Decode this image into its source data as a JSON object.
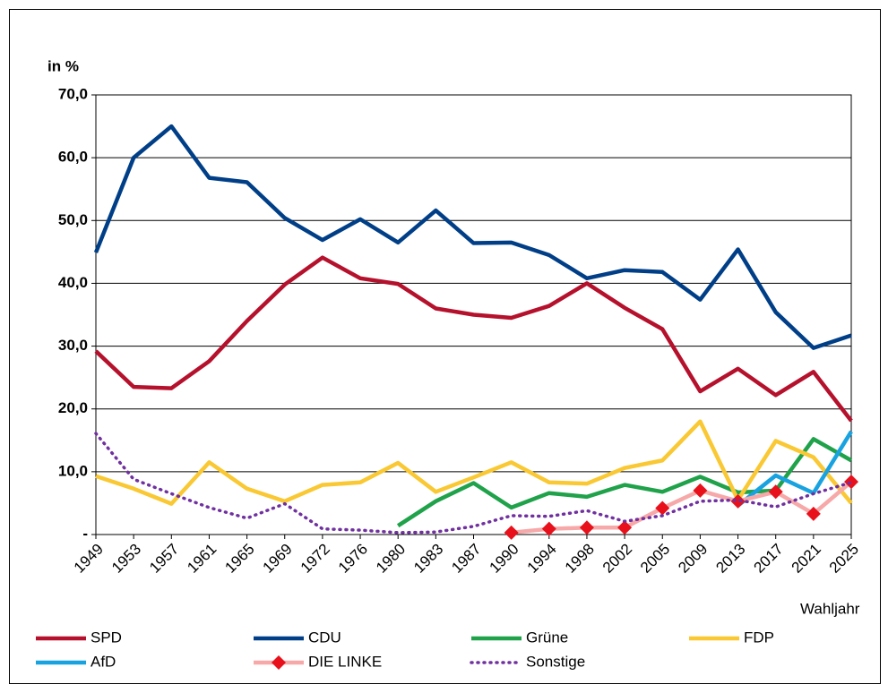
{
  "chart_data": {
    "type": "line",
    "y_label": "in %",
    "x_label": "Wahljahr",
    "categories": [
      "1949",
      "1953",
      "1957",
      "1961",
      "1965",
      "1969",
      "1972",
      "1976",
      "1980",
      "1983",
      "1987",
      "1990",
      "1994",
      "1998",
      "2002",
      "2005",
      "2009",
      "2013",
      "2017",
      "2021",
      "2025"
    ],
    "ylim": [
      0,
      70
    ],
    "yticks": [
      {
        "value": 0,
        "label": "-"
      },
      {
        "value": 10,
        "label": "10,0"
      },
      {
        "value": 20,
        "label": "20,0"
      },
      {
        "value": 30,
        "label": "30,0"
      },
      {
        "value": 40,
        "label": "40,0"
      },
      {
        "value": 50,
        "label": "50,0"
      },
      {
        "value": 60,
        "label": "60,0"
      },
      {
        "value": 70,
        "label": "70,0"
      }
    ],
    "grid": true,
    "legend": "bottom",
    "series": [
      {
        "name": "SPD",
        "color": "#b5112c",
        "values": [
          29.2,
          23.5,
          23.3,
          27.6,
          34.0,
          39.8,
          44.1,
          40.8,
          39.9,
          36.0,
          35.0,
          34.5,
          36.4,
          40.0,
          36.1,
          32.7,
          22.8,
          26.4,
          22.2,
          25.9,
          18.1
        ]
      },
      {
        "name": "CDU",
        "color": "#003f87",
        "values": [
          44.9,
          60.0,
          65.0,
          56.8,
          56.1,
          50.4,
          46.9,
          50.2,
          46.5,
          51.6,
          46.4,
          46.5,
          44.5,
          40.8,
          42.1,
          41.8,
          37.4,
          45.4,
          35.4,
          29.7,
          31.7
        ]
      },
      {
        "name": "Grüne",
        "color": "#1fa24a",
        "values": [
          null,
          null,
          null,
          null,
          null,
          null,
          null,
          null,
          1.4,
          5.3,
          8.2,
          4.3,
          6.6,
          6.0,
          7.9,
          6.8,
          9.2,
          6.7,
          7.0,
          15.2,
          11.8
        ]
      },
      {
        "name": "FDP",
        "color": "#f9c832",
        "values": [
          9.3,
          7.3,
          4.9,
          11.5,
          7.3,
          5.3,
          7.9,
          8.3,
          11.4,
          6.8,
          9.1,
          11.5,
          8.3,
          8.1,
          10.6,
          11.8,
          18.0,
          5.5,
          14.9,
          12.3,
          5.0
        ]
      },
      {
        "name": "AfD",
        "color": "#18a3e0",
        "values": [
          null,
          null,
          null,
          null,
          null,
          null,
          null,
          null,
          null,
          null,
          null,
          null,
          null,
          null,
          null,
          null,
          null,
          4.6,
          9.4,
          6.6,
          16.4
        ]
      },
      {
        "name": "DIE LINKE",
        "color": "#f7a8a8",
        "marker": "diamond",
        "marker_color": "#e8111b",
        "values": [
          null,
          null,
          null,
          null,
          null,
          null,
          null,
          null,
          null,
          null,
          null,
          0.3,
          0.9,
          1.1,
          1.1,
          4.2,
          7.0,
          5.3,
          6.8,
          3.3,
          8.4
        ]
      },
      {
        "name": "Sonstige",
        "color": "#7030a0",
        "dash": "dotted",
        "values": [
          16.1,
          8.8,
          6.5,
          4.3,
          2.6,
          4.9,
          0.9,
          0.7,
          0.3,
          0.4,
          1.3,
          3.0,
          2.9,
          3.8,
          2.1,
          3.0,
          5.3,
          5.5,
          4.4,
          6.5,
          8.3
        ]
      }
    ]
  }
}
